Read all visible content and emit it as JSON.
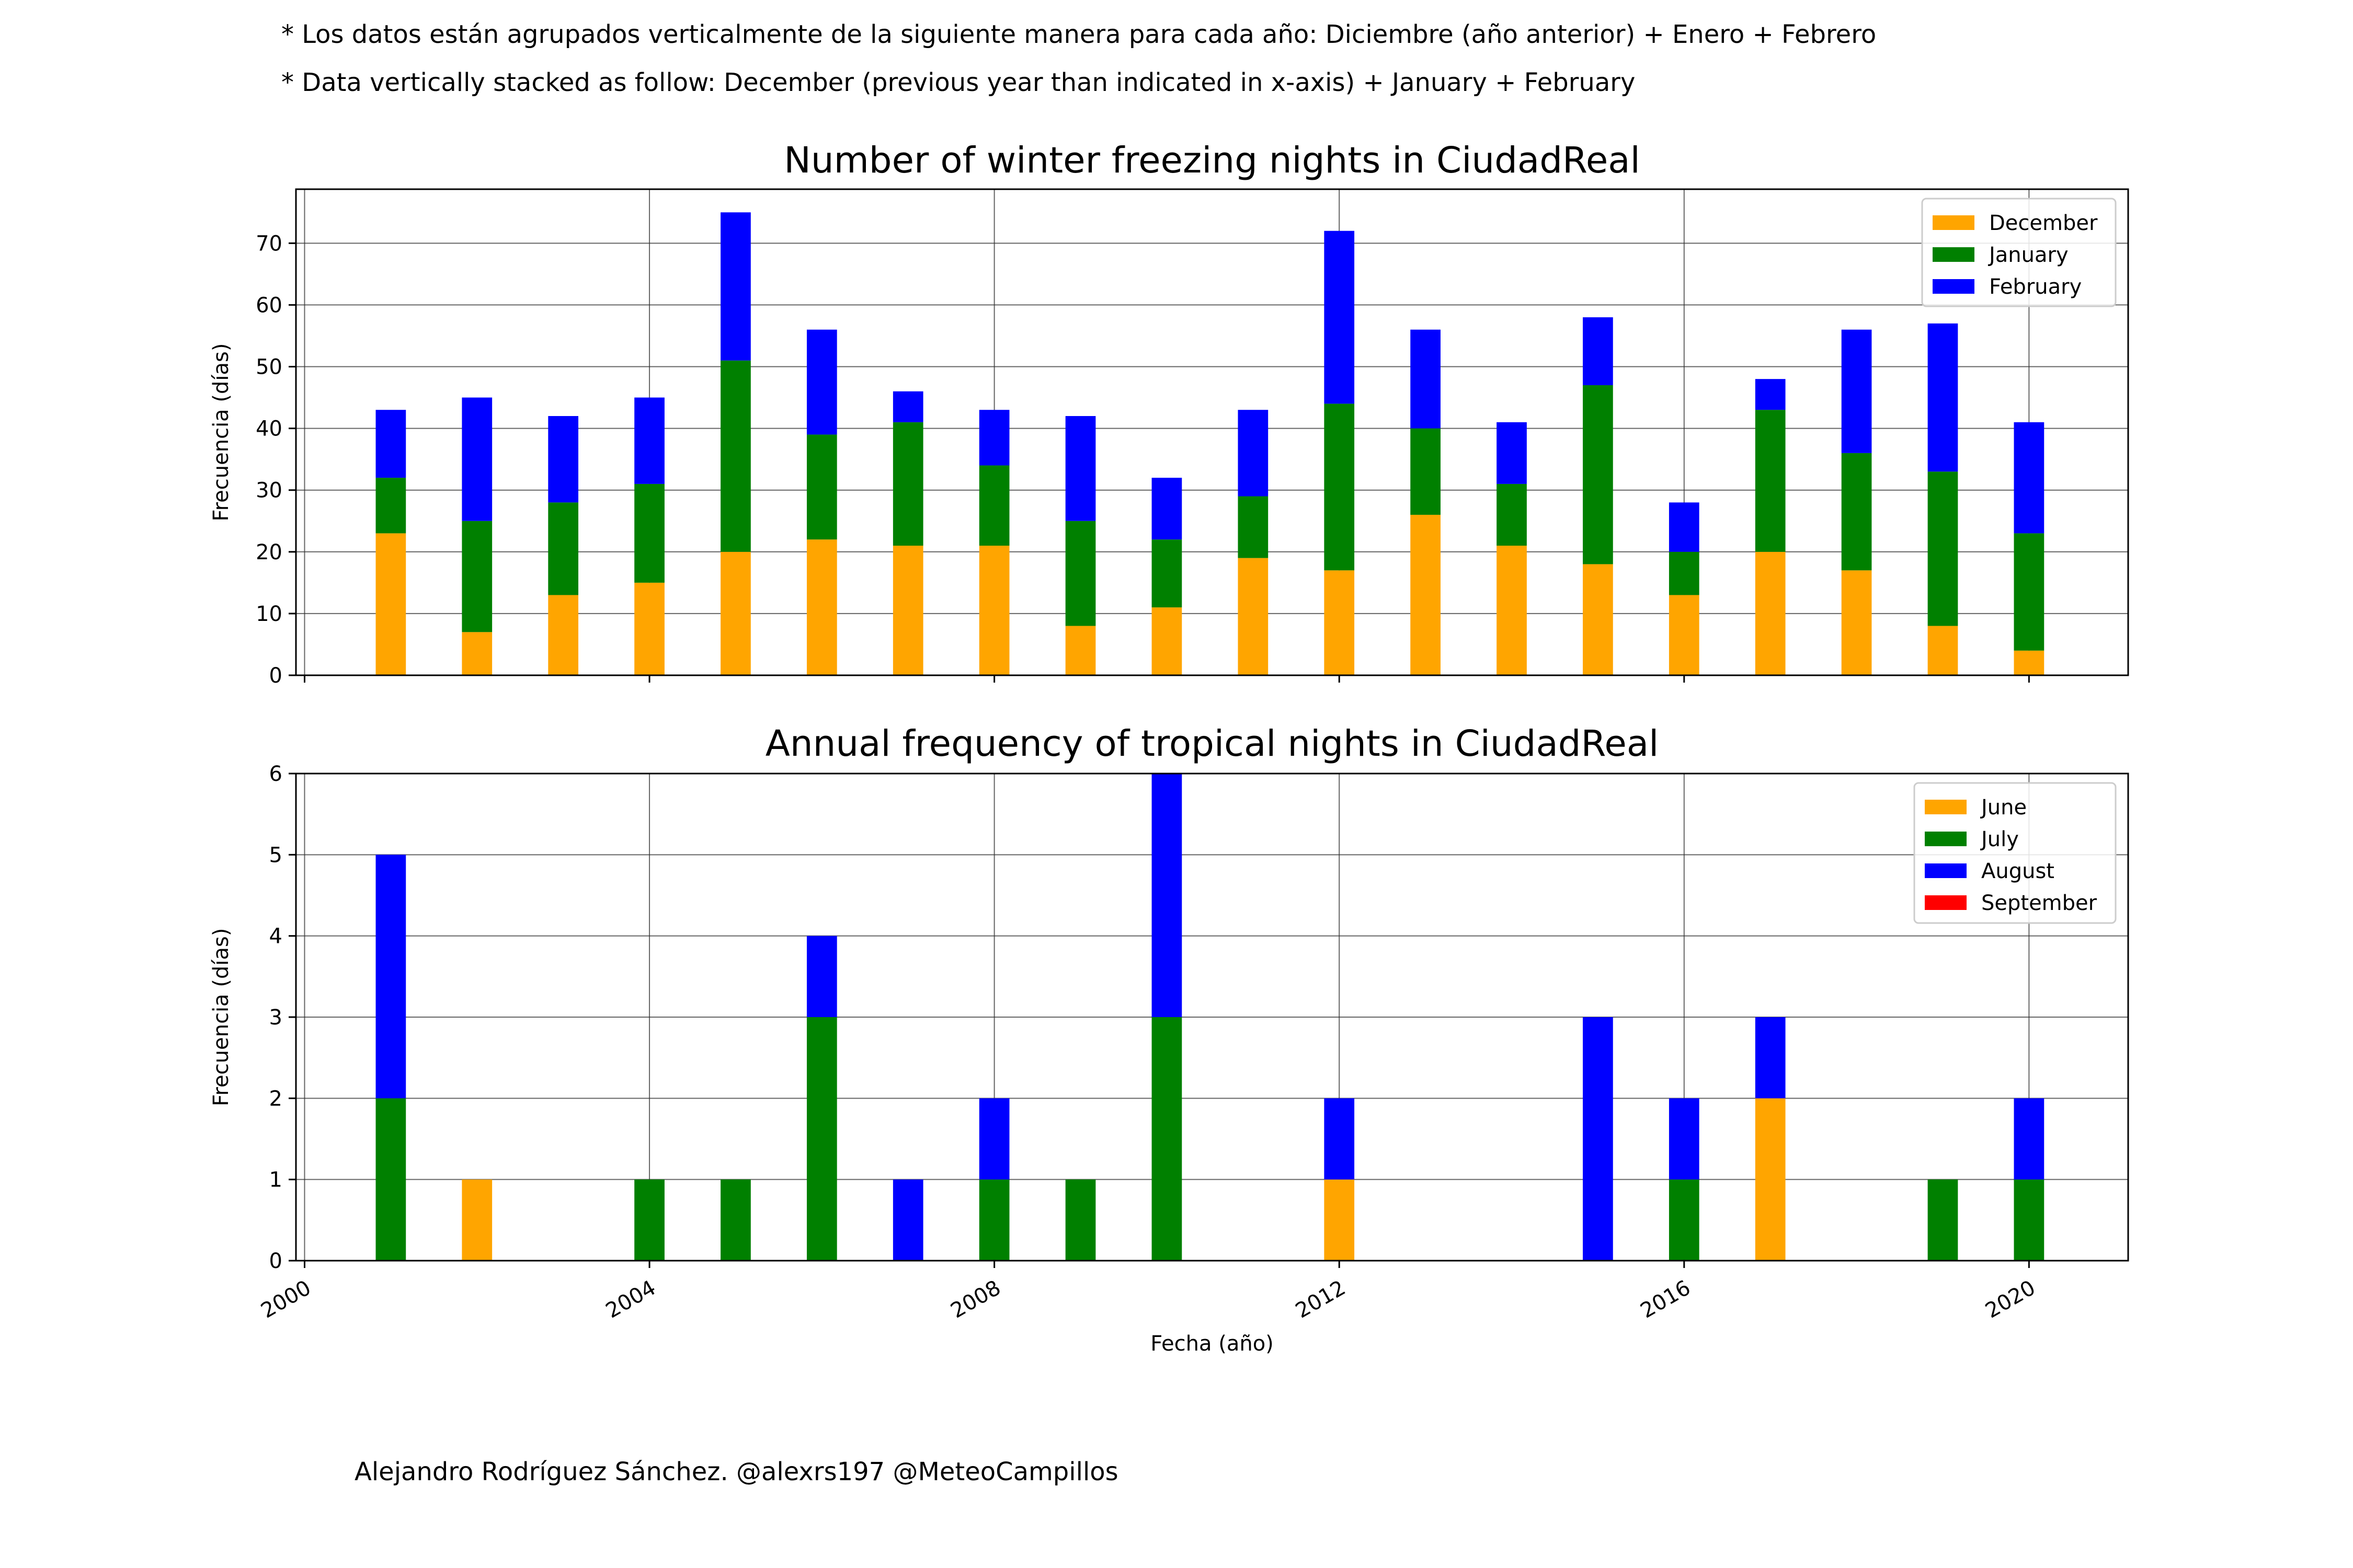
{
  "notes": {
    "es": "* Los datos están agrupados verticalmente de la siguiente manera para cada año: Diciembre (año anterior) + Enero  + Febrero",
    "en": "* Data vertically stacked as follow: December (previous year than indicated in x-axis) + January  + February"
  },
  "credit": "Alejandro Rodríguez Sánchez. @alexrs197 @MeteoCampillos",
  "chart_data": [
    {
      "type": "bar",
      "stacked": true,
      "title": "Number of winter freezing nights in CiudadReal",
      "xlabel": "",
      "ylabel": "Frecuencia (días)",
      "x": [
        2001,
        2002,
        2003,
        2004,
        2005,
        2006,
        2007,
        2008,
        2009,
        2010,
        2011,
        2012,
        2013,
        2014,
        2015,
        2016,
        2017,
        2018,
        2019,
        2020
      ],
      "xlim": [
        1999.9,
        2021.15
      ],
      "ylim": [
        0,
        78.75
      ],
      "xticks": [
        2000,
        2004,
        2008,
        2012,
        2016,
        2020
      ],
      "xtick_labels": [
        "",
        "",
        "",
        "",
        "",
        ""
      ],
      "yticks": [
        0,
        10,
        20,
        30,
        40,
        50,
        60,
        70
      ],
      "grid": true,
      "legend_position": "top-right",
      "series": [
        {
          "name": "December",
          "color": "#FFA500",
          "values": [
            23,
            7,
            13,
            15,
            20,
            22,
            21,
            21,
            8,
            11,
            19,
            17,
            26,
            21,
            18,
            13,
            20,
            17,
            8,
            4
          ]
        },
        {
          "name": "January",
          "color": "#008000",
          "values": [
            9,
            18,
            15,
            16,
            31,
            17,
            20,
            13,
            17,
            11,
            10,
            27,
            14,
            10,
            29,
            7,
            23,
            19,
            25,
            19
          ]
        },
        {
          "name": "February",
          "color": "#0000FF",
          "values": [
            11,
            20,
            14,
            14,
            24,
            17,
            5,
            9,
            17,
            10,
            14,
            28,
            16,
            10,
            11,
            8,
            5,
            20,
            24,
            18
          ]
        }
      ]
    },
    {
      "type": "bar",
      "stacked": true,
      "title": "Annual frequency of tropical nights in CiudadReal",
      "xlabel": "Fecha (año)",
      "ylabel": "Frecuencia (días)",
      "x": [
        2001,
        2002,
        2003,
        2004,
        2005,
        2006,
        2007,
        2008,
        2009,
        2010,
        2011,
        2012,
        2013,
        2014,
        2015,
        2016,
        2017,
        2018,
        2019,
        2020
      ],
      "xlim": [
        1999.9,
        2021.15
      ],
      "ylim": [
        0,
        6
      ],
      "xticks": [
        2000,
        2004,
        2008,
        2012,
        2016,
        2020
      ],
      "xtick_labels": [
        "2000",
        "2004",
        "2008",
        "2012",
        "2016",
        "2020"
      ],
      "yticks": [
        0,
        1,
        2,
        3,
        4,
        5,
        6
      ],
      "grid": true,
      "legend_position": "top-right",
      "series": [
        {
          "name": "June",
          "color": "#FFA500",
          "values": [
            0,
            1,
            0,
            0,
            0,
            0,
            0,
            0,
            0,
            0,
            0,
            1,
            0,
            0,
            0,
            0,
            2,
            0,
            0,
            0
          ]
        },
        {
          "name": "July",
          "color": "#008000",
          "values": [
            2,
            0,
            0,
            1,
            1,
            3,
            0,
            1,
            1,
            3,
            0,
            0,
            0,
            0,
            0,
            1,
            0,
            0,
            1,
            1
          ]
        },
        {
          "name": "August",
          "color": "#0000FF",
          "values": [
            3,
            0,
            0,
            0,
            0,
            1,
            1,
            1,
            0,
            3,
            0,
            1,
            0,
            0,
            3,
            1,
            1,
            0,
            0,
            1
          ]
        },
        {
          "name": "September",
          "color": "#FF0000",
          "values": [
            0,
            0,
            0,
            0,
            0,
            0,
            0,
            0,
            0,
            0,
            0,
            0,
            0,
            0,
            0,
            0,
            0,
            0,
            0,
            0
          ]
        }
      ]
    }
  ]
}
